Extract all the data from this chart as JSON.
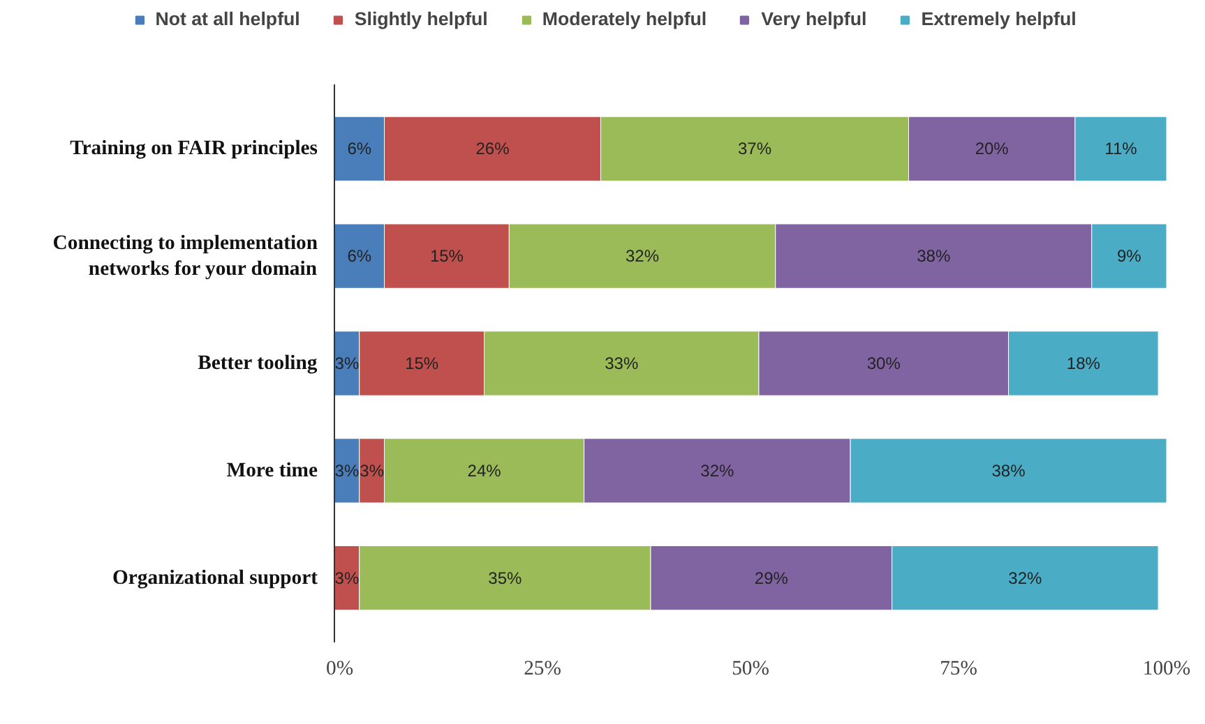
{
  "chart_data": {
    "type": "bar",
    "orientation": "horizontal",
    "stacked": true,
    "legend": "top",
    "grid": false,
    "categories": [
      "Training on FAIR principles",
      "Connecting to implementation\nnetworks for your domain",
      "Better tooling",
      "More time",
      "Organizational support"
    ],
    "xlim": [
      0,
      100
    ],
    "xticks": [
      {
        "value": 0,
        "label": "0%"
      },
      {
        "value": 25,
        "label": "25%"
      },
      {
        "value": 50,
        "label": "50%"
      },
      {
        "value": 75,
        "label": "75%"
      },
      {
        "value": 100,
        "label": "100%"
      }
    ],
    "series": [
      {
        "name": "Not at all helpful",
        "color": "#4a7ebb",
        "values": [
          6,
          6,
          3,
          3,
          null
        ],
        "value_labels": [
          "6%",
          "6%",
          "3%",
          "3%",
          null
        ]
      },
      {
        "name": "Slightly helpful",
        "color": "#c0504d",
        "values": [
          26,
          15,
          15,
          3,
          3
        ],
        "value_labels": [
          "26%",
          "15%",
          "15%",
          "3%",
          "3%"
        ]
      },
      {
        "name": "Moderately helpful",
        "color": "#9bbb59",
        "values": [
          37,
          32,
          33,
          24,
          35
        ],
        "value_labels": [
          "37%",
          "32%",
          "33%",
          "24%",
          "35%"
        ]
      },
      {
        "name": "Very helpful",
        "color": "#8064a2",
        "values": [
          20,
          38,
          30,
          32,
          29
        ],
        "value_labels": [
          "20%",
          "38%",
          "30%",
          "32%",
          "29%"
        ]
      },
      {
        "name": "Extremely helpful",
        "color": "#4bacc6",
        "values": [
          11,
          9,
          18,
          38,
          32
        ],
        "value_labels": [
          "11%",
          "9%",
          "18%",
          "38%",
          "32%"
        ]
      }
    ]
  }
}
